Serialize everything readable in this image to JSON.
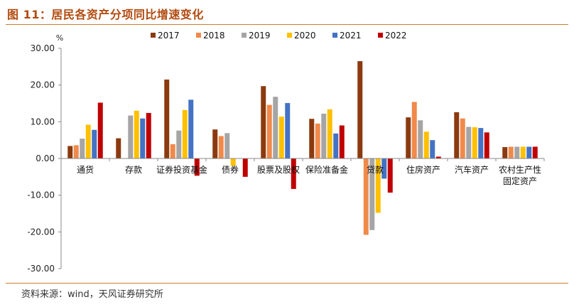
{
  "header": {
    "title": "图 11：居民各资产分项同比增速变化"
  },
  "footer": {
    "source": "资料来源：wind，天风证券研究所"
  },
  "chart_data": {
    "type": "bar",
    "title": "",
    "ylabel": "%",
    "ylim": [
      -30,
      30
    ],
    "yticks": [
      -30,
      -20,
      -10,
      0,
      10,
      20,
      30
    ],
    "ytick_labels": [
      "-30.00",
      "-20.00",
      "-10.00",
      "0.00",
      "10.00",
      "20.00",
      "30.00"
    ],
    "grid": false,
    "legend": "top",
    "categories": [
      "通货",
      "存款",
      "证券投资基金",
      "债券",
      "股票及股权",
      "保险准备金",
      "贷款",
      "住房资产",
      "汽车资产",
      "农村生产性固定资产"
    ],
    "category_lines": [
      [
        "通货"
      ],
      [
        "存款"
      ],
      [
        "证券投资基金"
      ],
      [
        "债券"
      ],
      [
        "股票及股权"
      ],
      [
        "保险准备金"
      ],
      [
        "贷款"
      ],
      [
        "住房资产"
      ],
      [
        "汽车资产"
      ],
      [
        "农村生产性",
        "固定资产"
      ]
    ],
    "series": [
      {
        "name": "2017",
        "color": "#8b3a0f",
        "values": [
          3.4,
          5.5,
          21.5,
          7.9,
          19.7,
          10.8,
          26.5,
          11.2,
          12.6,
          3.1
        ]
      },
      {
        "name": "2018",
        "color": "#f08a4b",
        "values": [
          3.6,
          0.0,
          3.9,
          6.1,
          14.6,
          9.5,
          -20.8,
          15.4,
          10.9,
          3.2
        ]
      },
      {
        "name": "2019",
        "color": "#a5a5a5",
        "values": [
          5.4,
          11.7,
          7.6,
          6.9,
          16.8,
          12.2,
          -19.5,
          10.4,
          8.6,
          3.2
        ]
      },
      {
        "name": "2020",
        "color": "#ffc000",
        "values": [
          9.2,
          13.0,
          13.2,
          -2.0,
          11.4,
          13.4,
          -14.8,
          7.3,
          8.5,
          3.2
        ]
      },
      {
        "name": "2021",
        "color": "#4472c4",
        "values": [
          7.8,
          10.9,
          16.0,
          0.0,
          15.1,
          6.8,
          -5.5,
          5.0,
          8.3,
          3.2
        ]
      },
      {
        "name": "2022",
        "color": "#c00000",
        "values": [
          15.2,
          12.4,
          -4.7,
          -5.0,
          -8.3,
          9.0,
          -9.3,
          0.5,
          7.1,
          3.2
        ]
      }
    ]
  }
}
